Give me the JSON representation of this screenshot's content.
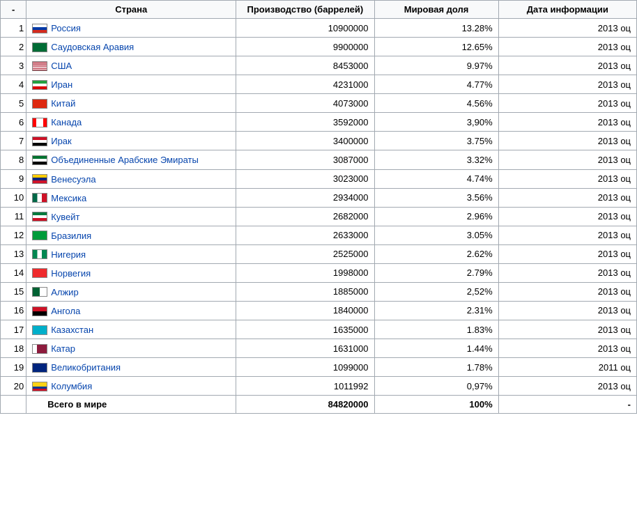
{
  "headers": {
    "rank": "-",
    "country": "Страна",
    "production": "Производство (баррелей)",
    "share": "Мировая доля",
    "date": "Дата информации"
  },
  "rows": [
    {
      "rank": "1",
      "country": "Россия",
      "flag": "russia",
      "production": "10900000",
      "share": "13.28%",
      "date": "2013 оц"
    },
    {
      "rank": "2",
      "country": "Саудовская Аравия",
      "flag": "saudi",
      "production": "9900000",
      "share": "12.65%",
      "date": "2013 оц"
    },
    {
      "rank": "3",
      "country": "США",
      "flag": "usa",
      "production": "8453000",
      "share": "9.97%",
      "date": "2013 оц"
    },
    {
      "rank": "4",
      "country": "Иран",
      "flag": "iran",
      "production": "4231000",
      "share": "4.77%",
      "date": "2013 оц"
    },
    {
      "rank": "5",
      "country": "Китай",
      "flag": "china",
      "production": "4073000",
      "share": "4.56%",
      "date": "2013 оц"
    },
    {
      "rank": "6",
      "country": "Канада",
      "flag": "canada",
      "production": "3592000",
      "share": "3,90%",
      "date": "2013 оц"
    },
    {
      "rank": "7",
      "country": "Ирак",
      "flag": "iraq",
      "production": "3400000",
      "share": "3.75%",
      "date": "2013 оц"
    },
    {
      "rank": "8",
      "country": "Объединенные Арабские Эмираты",
      "flag": "uae",
      "production": "3087000",
      "share": "3.32%",
      "date": "2013 оц"
    },
    {
      "rank": "9",
      "country": "Венесуэла",
      "flag": "venezuela",
      "production": "3023000",
      "share": "4.74%",
      "date": "2013 оц"
    },
    {
      "rank": "10",
      "country": "Мексика",
      "flag": "mexico",
      "production": "2934000",
      "share": "3.56%",
      "date": "2013 оц"
    },
    {
      "rank": "11",
      "country": "Кувейт",
      "flag": "kuwait",
      "production": "2682000",
      "share": "2.96%",
      "date": "2013 оц"
    },
    {
      "rank": "12",
      "country": "Бразилия",
      "flag": "brazil",
      "production": "2633000",
      "share": "3.05%",
      "date": "2013 оц"
    },
    {
      "rank": "13",
      "country": "Нигерия",
      "flag": "nigeria",
      "production": "2525000",
      "share": "2.62%",
      "date": "2013 оц"
    },
    {
      "rank": "14",
      "country": "Норвегия",
      "flag": "norway",
      "production": "1998000",
      "share": "2.79%",
      "date": "2013 оц"
    },
    {
      "rank": "15",
      "country": "Алжир",
      "flag": "algeria",
      "production": "1885000",
      "share": "2,52%",
      "date": "2013 оц"
    },
    {
      "rank": "16",
      "country": "Ангола",
      "flag": "angola",
      "production": "1840000",
      "share": "2.31%",
      "date": "2013 оц"
    },
    {
      "rank": "17",
      "country": "Казахстан",
      "flag": "kazakhstan",
      "production": "1635000",
      "share": "1.83%",
      "date": "2013 оц"
    },
    {
      "rank": "18",
      "country": "Катар",
      "flag": "qatar",
      "production": "1631000",
      "share": "1.44%",
      "date": "2013 оц"
    },
    {
      "rank": "19",
      "country": "Великобритания",
      "flag": "uk",
      "production": "1099000",
      "share": "1.78%",
      "date": "2011 оц"
    },
    {
      "rank": "20",
      "country": "Колумбия",
      "flag": "colombia",
      "production": "1011992",
      "share": "0,97%",
      "date": "2013 оц"
    }
  ],
  "total": {
    "rank": "",
    "country": "Всего в мире",
    "production": "84820000",
    "share": "100%",
    "date": "-"
  },
  "flags": {
    "russia": "linear-gradient(to bottom,#fff 0 33%,#0039a6 33% 66%,#d52b1e 66% 100%)",
    "saudi": "#006c35",
    "usa": "repeating-linear-gradient(#b22234 0 1.1px,#fff 1.1px 2.2px)",
    "iran": "linear-gradient(to bottom,#239f40 0 33%,#fff 33% 66%,#da0000 66% 100%)",
    "china": "#de2910",
    "canada": "linear-gradient(to right,#ff0000 0 25%,#fff 25% 75%,#ff0000 75% 100%)",
    "iraq": "linear-gradient(to bottom,#ce1126 0 33%,#fff 33% 66%,#000 66% 100%)",
    "uae": "linear-gradient(to bottom,#00732f 0 33%,#fff 33% 66%,#000 66% 100%)",
    "venezuela": "linear-gradient(to bottom,#ffcc00 0 33%,#00247d 33% 66%,#cf142b 66% 100%)",
    "mexico": "linear-gradient(to right,#006847 0 33%,#fff 33% 66%,#ce1126 66% 100%)",
    "kuwait": "linear-gradient(to bottom,#007a3d 0 33%,#fff 33% 66%,#ce1126 66% 100%)",
    "brazil": "#009b3a",
    "nigeria": "linear-gradient(to right,#008751 0 33%,#fff 33% 66%,#008751 66% 100%)",
    "norway": "#ef2b2d",
    "algeria": "linear-gradient(to right,#006233 0 50%,#fff 50% 100%)",
    "angola": "linear-gradient(to bottom,#ce1126 0 50%,#000 50% 100%)",
    "kazakhstan": "#00afca",
    "qatar": "linear-gradient(to right,#fff 0 30%,#8d1b3d 30% 100%)",
    "uk": "#00247d",
    "colombia": "linear-gradient(to bottom,#fcd116 0 50%,#003893 50% 75%,#ce1126 75% 100%)"
  }
}
